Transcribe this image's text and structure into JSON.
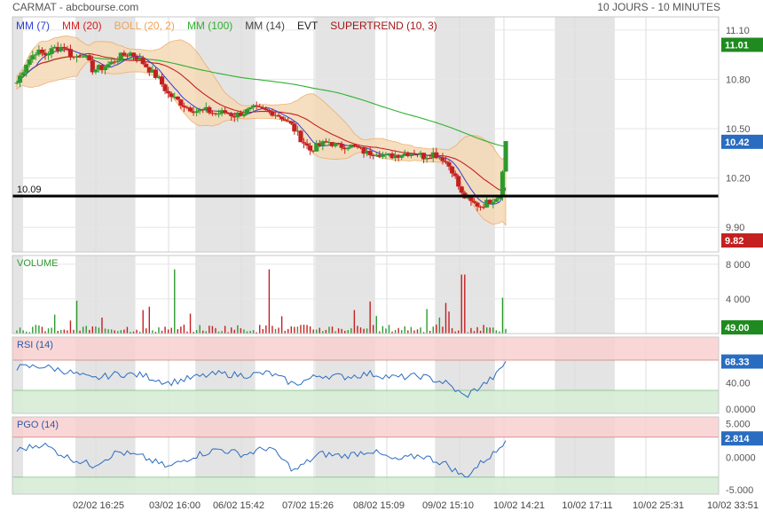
{
  "header": {
    "title": "CARMAT - abcbourse.com",
    "period": "10 JOURS - 10 MINUTES"
  },
  "legend": [
    {
      "label": "MM (7)",
      "color": "#2c3fd6"
    },
    {
      "label": "MM (20)",
      "color": "#d42020"
    },
    {
      "label": "BOLL (20, 2)",
      "color": "#eda45a"
    },
    {
      "label": "MM (100)",
      "color": "#2fb02f"
    },
    {
      "label": "MM (14)",
      "color": "#444444"
    },
    {
      "label": "EVT",
      "color": "#222222"
    },
    {
      "label": "SUPERTREND (10, 3)",
      "color": "#a01818"
    }
  ],
  "colors": {
    "up": "#2e9a2e",
    "down": "#c42020",
    "boll_fill": "#f5d9b6",
    "boll_line": "#eda45a",
    "mm7": "#2c3fd6",
    "mm20": "#c42020",
    "mm100": "#2fb02f",
    "shade": "#e4e4e4",
    "rsi_line": "#2a6cc0",
    "overbought": "#f9d0d0",
    "oversold": "#d6ecd6",
    "support": "#000000"
  },
  "chart_data": [
    {
      "name": "price",
      "type": "candlestick",
      "y_ticks": [
        "11.10",
        "10.80",
        "10.50",
        "10.20",
        "9.90"
      ],
      "ylim": [
        9.75,
        11.18
      ],
      "support_line": {
        "value": 10.09,
        "label": "10.09"
      },
      "badges": [
        {
          "text": "11.01",
          "value": 11.01,
          "color": "#1f8a1f"
        },
        {
          "text": "10.42",
          "value": 10.42,
          "color": "#2a6cc0"
        },
        {
          "text": "9.82",
          "value": 9.82,
          "color": "#c42020"
        }
      ],
      "close_profile": [
        [
          0,
          10.78
        ],
        [
          3,
          10.9
        ],
        [
          6,
          10.97
        ],
        [
          9,
          10.95
        ],
        [
          12,
          10.99
        ],
        [
          15,
          11.0
        ],
        [
          18,
          10.93
        ],
        [
          21,
          10.96
        ],
        [
          24,
          10.86
        ],
        [
          27,
          10.87
        ],
        [
          30,
          10.9
        ],
        [
          33,
          10.94
        ],
        [
          36,
          10.96
        ],
        [
          39,
          10.92
        ],
        [
          42,
          10.86
        ],
        [
          45,
          10.8
        ],
        [
          48,
          10.71
        ],
        [
          51,
          10.67
        ],
        [
          54,
          10.63
        ],
        [
          57,
          10.61
        ],
        [
          60,
          10.61
        ],
        [
          63,
          10.59
        ],
        [
          66,
          10.6
        ],
        [
          69,
          10.58
        ],
        [
          72,
          10.6
        ],
        [
          75,
          10.62
        ],
        [
          78,
          10.61
        ],
        [
          81,
          10.6
        ],
        [
          84,
          10.57
        ],
        [
          87,
          10.52
        ],
        [
          90,
          10.44
        ],
        [
          93,
          10.37
        ],
        [
          96,
          10.4
        ],
        [
          99,
          10.42
        ],
        [
          102,
          10.39
        ],
        [
          105,
          10.4
        ],
        [
          108,
          10.38
        ],
        [
          111,
          10.35
        ],
        [
          114,
          10.36
        ],
        [
          117,
          10.33
        ],
        [
          120,
          10.34
        ],
        [
          123,
          10.35
        ],
        [
          126,
          10.36
        ],
        [
          129,
          10.33
        ],
        [
          132,
          10.35
        ],
        [
          135,
          10.32
        ],
        [
          138,
          10.25
        ],
        [
          141,
          10.1
        ],
        [
          144,
          10.05
        ],
        [
          147,
          10.03
        ],
        [
          150,
          10.06
        ],
        [
          153,
          10.1
        ],
        [
          155,
          10.42
        ]
      ]
    },
    {
      "name": "volume",
      "type": "bar",
      "title": "VOLUME",
      "y_ticks": [
        "8 000",
        "4 000"
      ],
      "ylim": [
        0,
        9000
      ],
      "last_badge": "49.00"
    },
    {
      "name": "rsi",
      "type": "line",
      "title": "RSI (14)",
      "y_ticks": [
        "40.00",
        "0.0000"
      ],
      "ylim": [
        0,
        100
      ],
      "last_badge": "68.33",
      "profile": [
        [
          0,
          60
        ],
        [
          8,
          62
        ],
        [
          16,
          55
        ],
        [
          24,
          45
        ],
        [
          32,
          52
        ],
        [
          40,
          50
        ],
        [
          48,
          40
        ],
        [
          56,
          47
        ],
        [
          64,
          52
        ],
        [
          72,
          50
        ],
        [
          80,
          53
        ],
        [
          88,
          38
        ],
        [
          96,
          50
        ],
        [
          104,
          48
        ],
        [
          112,
          52
        ],
        [
          120,
          47
        ],
        [
          128,
          49
        ],
        [
          136,
          40
        ],
        [
          142,
          22
        ],
        [
          148,
          38
        ],
        [
          152,
          50
        ],
        [
          155,
          68
        ]
      ]
    },
    {
      "name": "pgo",
      "type": "line",
      "title": "PGO (14)",
      "y_ticks": [
        "5.000",
        "0.0000",
        "-5.000"
      ],
      "ylim": [
        -5.5,
        6.0
      ],
      "last_badge": "2.814",
      "profile": [
        [
          0,
          1.0
        ],
        [
          8,
          2.0
        ],
        [
          16,
          0.0
        ],
        [
          24,
          -1.2
        ],
        [
          32,
          0.8
        ],
        [
          40,
          0.0
        ],
        [
          48,
          -1.5
        ],
        [
          56,
          0.2
        ],
        [
          64,
          1.2
        ],
        [
          72,
          0.4
        ],
        [
          80,
          1.5
        ],
        [
          88,
          -2.0
        ],
        [
          96,
          0.5
        ],
        [
          104,
          0.2
        ],
        [
          112,
          1.0
        ],
        [
          120,
          -0.5
        ],
        [
          128,
          0.3
        ],
        [
          136,
          -1.0
        ],
        [
          142,
          -3.0
        ],
        [
          148,
          -0.5
        ],
        [
          152,
          0.8
        ],
        [
          155,
          2.8
        ]
      ]
    }
  ],
  "x_axis": {
    "labels": [
      "02/02 16:25",
      "03/02 16:00",
      "06/02 15:42",
      "07/02 15:26",
      "08/02 15:09",
      "09/02 15:10",
      "10/02 14:21",
      "10/02 17:11",
      "10/02 25:31",
      "10/02 33:51"
    ]
  },
  "session_breaks": [
    0,
    19,
    38,
    57,
    76,
    95,
    114,
    133,
    152,
    171,
    190
  ]
}
